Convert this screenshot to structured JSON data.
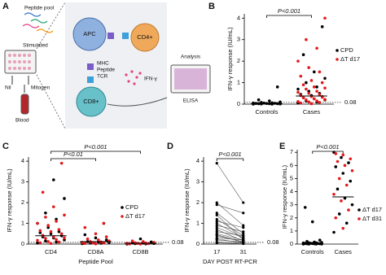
{
  "panel_labels": [
    "A",
    "B",
    "C",
    "D",
    "E"
  ],
  "diagram": {
    "peptide_pool": "Peptide pool",
    "stimulated": "Stimulated",
    "nil": "Nil",
    "mitogen": "Mitogen",
    "blood": "Blood",
    "apc": "APC",
    "cd4": "CD4+",
    "mhc": "MHC",
    "peptide": "Peptide",
    "tcr": "TCR",
    "cd8": "CD8+",
    "ifn": "IFN-γ",
    "analysis": "Analysis",
    "elisa": "ELISA"
  },
  "chart_data": [
    {
      "type": "strip",
      "y_label": "IFN-γ response (IU/mL)",
      "categories": [
        "Controls",
        "Cases"
      ],
      "series": [
        {
          "name": "CPD",
          "color": "#000000",
          "groups": [
            [
              0,
              0,
              0.01,
              0.01,
              0.02,
              0.02,
              0.02,
              0.03,
              0.03,
              0.04,
              0.05,
              0.05,
              0.06,
              0.08,
              0.1,
              0.15,
              0.2,
              0.8
            ],
            [
              0.05,
              0.1,
              0.15,
              0.2,
              0.25,
              0.3,
              0.35,
              0.4,
              0.45,
              0.5,
              0.6,
              0.7,
              0.8,
              1.0,
              1.2,
              1.5,
              2.3,
              3.6
            ]
          ]
        },
        {
          "name": "ΔT d17",
          "color": "#e41a1c",
          "groups": [
            [],
            [
              0.02,
              0.05,
              0.08,
              0.1,
              0.12,
              0.15,
              0.2,
              0.22,
              0.25,
              0.3,
              0.32,
              0.35,
              0.4,
              0.45,
              0.5,
              0.55,
              0.6,
              0.7,
              0.75,
              0.8,
              0.9,
              1.0,
              1.1,
              1.3,
              1.5,
              1.7,
              2.0,
              2.6,
              3.0,
              4.0
            ]
          ]
        }
      ],
      "medians": [
        0.03,
        0.38
      ],
      "reference_line": 0.08,
      "comparisons": [
        {
          "label": "P<0.001",
          "between": [
            "Controls",
            "Cases"
          ]
        }
      ],
      "ylim": [
        0,
        4.2
      ],
      "yticks": [
        0,
        1,
        2,
        3,
        4
      ],
      "legend": "right"
    },
    {
      "type": "strip",
      "y_label": "IFN-γ response (IU/mL)",
      "x_label": "Peptide Pool",
      "categories": [
        "CD4",
        "CD8A",
        "CD8B"
      ],
      "series": [
        {
          "name": "CPD",
          "color": "#000000",
          "groups": [
            [
              0.05,
              0.1,
              0.15,
              0.2,
              0.3,
              0.35,
              0.4,
              0.5,
              0.55,
              0.6,
              0.8,
              1.0,
              1.2,
              1.5,
              2.2,
              3.1
            ],
            [
              0.02,
              0.04,
              0.05,
              0.08,
              0.1,
              0.12,
              0.2,
              0.3,
              0.45,
              1.0
            ],
            [
              0,
              0.01,
              0.02,
              0.03,
              0.05,
              0.07,
              0.1,
              0.25
            ]
          ]
        },
        {
          "name": "ΔT d17",
          "color": "#e41a1c",
          "groups": [
            [
              0.03,
              0.06,
              0.1,
              0.12,
              0.18,
              0.22,
              0.28,
              0.3,
              0.35,
              0.42,
              0.5,
              0.6,
              0.65,
              0.7,
              0.9,
              1.0,
              1.1,
              1.3,
              1.4,
              1.8,
              2.5,
              3.9
            ],
            [
              0.01,
              0.03,
              0.05,
              0.06,
              0.08,
              0.1,
              0.12,
              0.15,
              0.2,
              0.25,
              0.35,
              0.5,
              0.8,
              1.0
            ],
            [
              0,
              0.01,
              0.02,
              0.03,
              0.04,
              0.05,
              0.06,
              0.08,
              0.12,
              0.15
            ]
          ]
        }
      ],
      "medians": [
        0.4,
        0.12,
        0.04
      ],
      "reference_line": 0.08,
      "comparisons": [
        {
          "label": "P<0.001",
          "between": [
            "CD4",
            "CD8B"
          ]
        },
        {
          "label": "P<0.01",
          "between": [
            "CD4",
            "CD8A"
          ]
        }
      ],
      "ylim": [
        0,
        4.2
      ],
      "yticks": [
        0,
        1,
        2,
        3,
        4
      ],
      "legend": "right"
    },
    {
      "type": "paired",
      "y_label": "IFN-γ response (IU/mL)",
      "x_label": "DAY POST RT-PCR",
      "categories": [
        "17",
        "31"
      ],
      "color": "#000000",
      "pairs": [
        [
          3.9,
          2.0
        ],
        [
          2.0,
          0.9
        ],
        [
          1.9,
          1.5
        ],
        [
          1.5,
          0.5
        ],
        [
          1.4,
          0.2
        ],
        [
          1.2,
          0.4
        ],
        [
          1.1,
          0.8
        ],
        [
          1.0,
          0.3
        ],
        [
          0.9,
          0.6
        ],
        [
          0.8,
          0.3
        ],
        [
          0.7,
          0.15
        ],
        [
          0.6,
          0.4
        ],
        [
          0.5,
          0.2
        ],
        [
          0.45,
          0.1
        ],
        [
          0.4,
          0.1
        ],
        [
          0.3,
          0.2
        ],
        [
          0.25,
          0.05
        ],
        [
          0.2,
          0.1
        ],
        [
          0.1,
          0.05
        ],
        [
          0.05,
          0.02
        ]
      ],
      "reference_line": 0.08,
      "comparisons": [
        {
          "label": "P<0.001",
          "between": [
            "17",
            "31"
          ]
        }
      ],
      "ylim": [
        0,
        4.2
      ],
      "yticks": [
        0,
        1,
        2,
        3,
        4
      ]
    },
    {
      "type": "strip",
      "y_label": "IFN-γ response (IU/mL)",
      "categories": [
        "Controls",
        "Cases"
      ],
      "series": [
        {
          "name": "ΔT d17",
          "color": "#000000",
          "groups": [
            [
              0,
              0,
              0,
              0.01,
              0.02,
              0.02,
              0.03,
              0.04,
              0.05,
              0.05,
              0.06,
              0.08,
              0.1,
              0.1,
              0.12,
              0.15,
              0.2,
              0.3,
              1.7,
              2.8
            ],
            [
              0.9,
              1.6,
              2.3,
              3.0,
              3.5,
              4.2,
              4.8,
              5.4,
              5.9,
              6.2,
              6.6,
              7.0
            ]
          ]
        },
        {
          "name": "ΔT d31",
          "color": "#e41a1c",
          "groups": [
            [],
            [
              1.2,
              2.0,
              2.6,
              3.3,
              3.8,
              4.5,
              5.0,
              5.6,
              6.0,
              6.3,
              6.5,
              6.8,
              6.9
            ]
          ]
        }
      ],
      "medians": [
        0.05,
        3.6
      ],
      "comparisons": [
        {
          "label": "P<0.001",
          "between": [
            "Controls",
            "Cases"
          ]
        }
      ],
      "ylim": [
        0,
        7.2
      ],
      "yticks": [
        0,
        1,
        2,
        3,
        4,
        5,
        6,
        7
      ],
      "legend": "right"
    }
  ]
}
